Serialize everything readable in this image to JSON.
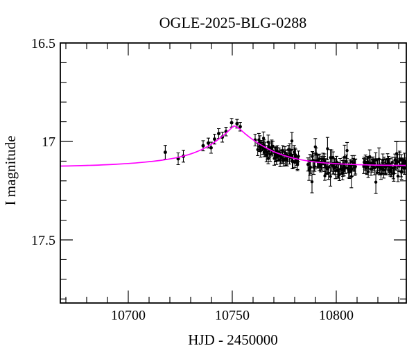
{
  "title": "OGLE-2025-BLG-0288",
  "chart_data": {
    "type": "scatter",
    "title": "OGLE-2025-BLG-0288",
    "xlabel": "HJD - 2450000",
    "ylabel": "I magnitude",
    "x_range": [
      10667.3,
      10833.7
    ],
    "y_range_mag": [
      16.5,
      17.82
    ],
    "y_axis_inverted": true,
    "x_major_ticks": [
      10700,
      10750,
      10800
    ],
    "x_minor_tick_step": 10,
    "y_major_ticks": [
      16.5,
      17,
      17.5
    ],
    "y_minor_tick_step": 0.1,
    "colors": {
      "model_curve": "#ff00ff",
      "data_points": "#000000",
      "frame": "#000000"
    },
    "model_curve_points": [
      [
        10667.3,
        17.125
      ],
      [
        10680,
        17.122
      ],
      [
        10690,
        17.118
      ],
      [
        10700,
        17.112
      ],
      [
        10708,
        17.105
      ],
      [
        10715,
        17.097
      ],
      [
        10721,
        17.087
      ],
      [
        10727,
        17.073
      ],
      [
        10732,
        17.056
      ],
      [
        10736,
        17.038
      ],
      [
        10740,
        17.014
      ],
      [
        10743,
        16.992
      ],
      [
        10746,
        16.967
      ],
      [
        10748,
        16.948
      ],
      [
        10749.5,
        16.933
      ],
      [
        10750.8,
        16.922
      ],
      [
        10752.2,
        16.927
      ],
      [
        10754,
        16.941
      ],
      [
        10756,
        16.959
      ],
      [
        10759,
        16.984
      ],
      [
        10762,
        17.006
      ],
      [
        10766,
        17.031
      ],
      [
        10770,
        17.052
      ],
      [
        10774,
        17.068
      ],
      [
        10778,
        17.081
      ],
      [
        10782,
        17.091
      ],
      [
        10787,
        17.1
      ],
      [
        10793,
        17.108
      ],
      [
        10800,
        17.113
      ],
      [
        10808,
        17.117
      ],
      [
        10818,
        17.12
      ],
      [
        10833.7,
        17.122
      ]
    ],
    "sparse_points": [
      [
        10717.8,
        17.055,
        0.035
      ],
      [
        10724.0,
        17.088,
        0.03
      ],
      [
        10726.5,
        17.075,
        0.03
      ],
      [
        10736.0,
        17.022,
        0.026
      ],
      [
        10738.5,
        17.008,
        0.025
      ],
      [
        10739.8,
        17.032,
        0.028
      ],
      [
        10741.5,
        16.988,
        0.025
      ],
      [
        10743.5,
        16.96,
        0.025
      ],
      [
        10745.2,
        16.978,
        0.025
      ],
      [
        10747.0,
        16.95,
        0.022
      ],
      [
        10749.7,
        16.905,
        0.022
      ],
      [
        10752.3,
        16.91,
        0.022
      ],
      [
        10753.8,
        16.925,
        0.022
      ],
      [
        10761.0,
        16.993,
        0.03
      ]
    ],
    "dense_clusters": [
      {
        "t_start": 10762.2,
        "t_end": 10782.0,
        "n": 62,
        "scatter": 0.018,
        "err": 0.028,
        "bias": 0.004
      },
      {
        "t_start": 10786.3,
        "t_end": 10809.3,
        "n": 70,
        "scatter": 0.022,
        "err": 0.03,
        "bias": 0.008
      },
      {
        "t_start": 10813.0,
        "t_end": 10833.5,
        "n": 68,
        "scatter": 0.02,
        "err": 0.03,
        "bias": 0.005
      }
    ],
    "random_seed": 20250288
  }
}
